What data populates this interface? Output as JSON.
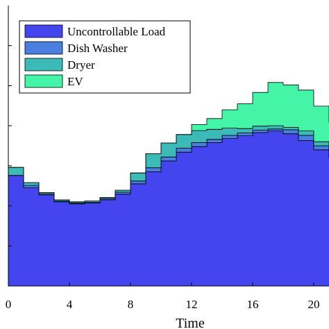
{
  "chart_data": {
    "type": "area",
    "xlabel": "Time",
    "ylabel": "",
    "title": "",
    "x_ticks": [
      "0",
      "4",
      "8",
      "12",
      "16",
      "20"
    ],
    "xlim": [
      0,
      21
    ],
    "ylim": [
      0,
      7
    ],
    "legend_placement": "top-left",
    "x": [
      0,
      1,
      2,
      3,
      4,
      5,
      6,
      7,
      8,
      9,
      10,
      11,
      12,
      13,
      14,
      15,
      16,
      17,
      18,
      19,
      20,
      21
    ],
    "series": [
      {
        "name": "Uncontrollable Load",
        "color": "#4545f0",
        "values": [
          2.76,
          2.45,
          2.27,
          2.1,
          2.05,
          2.07,
          2.15,
          2.29,
          2.55,
          2.85,
          3.12,
          3.34,
          3.48,
          3.58,
          3.68,
          3.75,
          3.83,
          3.87,
          3.8,
          3.63,
          3.4,
          3.2
        ]
      },
      {
        "name": "Dish Washer",
        "color": "#4a7fe0",
        "values": [
          0.0,
          0.06,
          0.03,
          0.02,
          0.02,
          0.02,
          0.03,
          0.05,
          0.07,
          0.1,
          0.1,
          0.1,
          0.1,
          0.08,
          0.08,
          0.07,
          0.06,
          0.05,
          0.1,
          0.13,
          0.1,
          0.07
        ]
      },
      {
        "name": "Dryer",
        "color": "#3bbab8",
        "values": [
          0.2,
          0.07,
          0.03,
          0.03,
          0.03,
          0.03,
          0.03,
          0.05,
          0.2,
          0.35,
          0.35,
          0.34,
          0.3,
          0.25,
          0.18,
          0.11,
          0.1,
          0.08,
          0.06,
          0.11,
          0.1,
          0.08
        ]
      },
      {
        "name": "EV",
        "color": "#44f5a8",
        "values": [
          0.0,
          0.0,
          0.0,
          0.0,
          0.0,
          0.0,
          0.0,
          0.0,
          0.0,
          0.0,
          0.0,
          0.0,
          0.15,
          0.27,
          0.46,
          0.62,
          0.84,
          1.08,
          1.06,
          1.02,
          0.89,
          0.73
        ]
      }
    ]
  }
}
